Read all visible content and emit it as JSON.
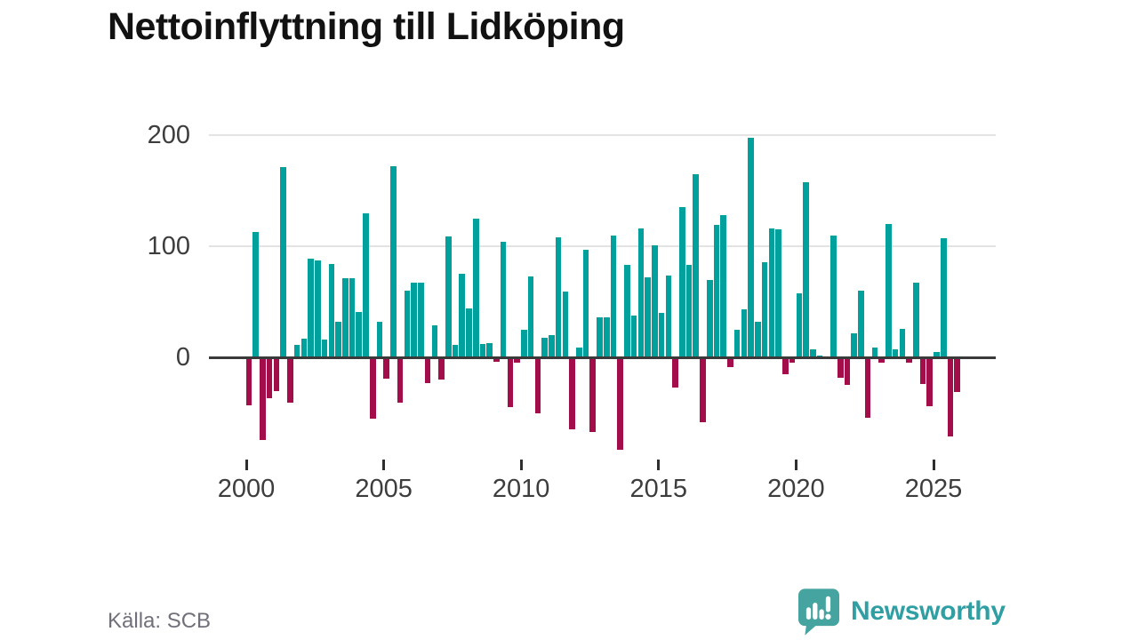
{
  "title": "Nettoinflyttning till Lidköping",
  "source": "Källa: SCB",
  "branding": {
    "name": "Newsworthy",
    "icon": "speech-bubble-bar-chart-icon",
    "color": "#2f9fa3",
    "icon_color": "#45a3a0"
  },
  "colors": {
    "positive_bar": "#00a19c",
    "negative_bar": "#a30d49",
    "axis_line": "#3a3a3a",
    "gridline": "#e3e3e3",
    "axis_label": "#3d3d3d",
    "title": "#121212",
    "source_text": "#70707a"
  },
  "chart_data": {
    "type": "bar",
    "title": "Nettoinflyttning till Lidköping",
    "xlabel": "",
    "ylabel": "",
    "frequency": "quarterly",
    "x_start": "2000-Q1",
    "x_end": "2025-Q4",
    "xticks": [
      "2000",
      "2005",
      "2010",
      "2015",
      "2020",
      "2025"
    ],
    "yticks": [
      0,
      100,
      200
    ],
    "ylim": [
      -90,
      215
    ],
    "grid": "horizontal",
    "legend": "none",
    "series": [
      {
        "name": "Nettoinflyttning",
        "values": [
          -43,
          113,
          -74,
          -37,
          -30,
          171,
          -41,
          11,
          17,
          89,
          87,
          16,
          84,
          32,
          71,
          71,
          41,
          130,
          -55,
          32,
          -19,
          172,
          -41,
          60,
          67,
          67,
          -23,
          29,
          -20,
          109,
          11,
          75,
          44,
          125,
          12,
          13,
          -4,
          104,
          -45,
          -5,
          25,
          73,
          -50,
          18,
          20,
          108,
          59,
          -65,
          9,
          97,
          -67,
          36,
          36,
          110,
          -83,
          83,
          38,
          116,
          72,
          101,
          40,
          74,
          -27,
          135,
          83,
          165,
          -58,
          70,
          119,
          128,
          -9,
          25,
          43,
          198,
          32,
          86,
          116,
          115,
          -15,
          -5,
          58,
          158,
          7,
          2,
          0,
          110,
          -18,
          -25,
          22,
          60,
          -54,
          9,
          -5,
          120,
          7,
          26,
          -5,
          67,
          -24,
          -44,
          5,
          107,
          -71,
          -31
        ]
      }
    ]
  }
}
